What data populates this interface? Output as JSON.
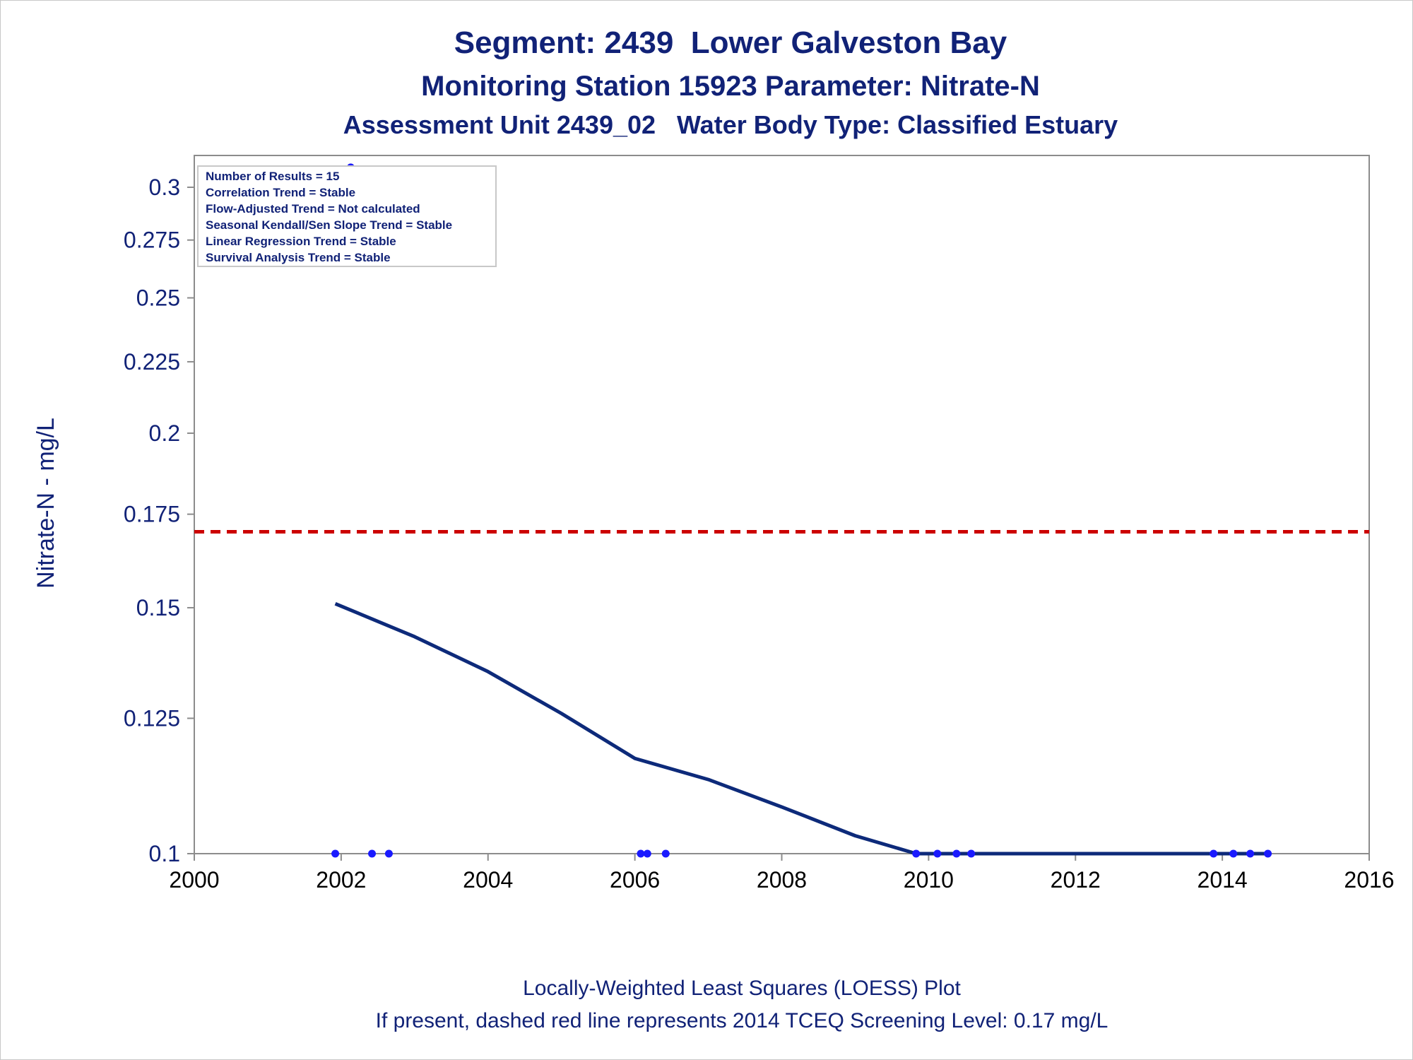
{
  "titles": {
    "line1": "Segment: 2439  Lower Galveston Bay",
    "line2": "Monitoring Station 15923 Parameter: Nitrate-N",
    "line3": "Assessment Unit 2439_02   Water Body Type: Classified Estuary"
  },
  "footnotes": {
    "line1": "Locally-Weighted Least Squares (LOESS) Plot",
    "line2": "If present, dashed red line represents 2014 TCEQ Screening Level: 0.17 mg/L"
  },
  "legend_box": [
    "Number of Results = 15",
    "Correlation Trend = Stable",
    "Flow-Adjusted Trend = Not calculated",
    "Seasonal Kendall/Sen Slope Trend = Stable",
    "Linear Regression Trend = Stable",
    "Survival Analysis Trend = Stable"
  ],
  "colors": {
    "text": "#112277",
    "loess_line": "#0d2a7a",
    "points": "#1a1aff",
    "screening_line": "#cc0000",
    "axis": "#8c8c8c"
  },
  "chart_data": {
    "type": "scatter",
    "xlabel": "",
    "ylabel": "Nitrate-N - mg/L",
    "x_ticks": [
      "2000",
      "2002",
      "2004",
      "2006",
      "2008",
      "2010",
      "2012",
      "2014",
      "2016"
    ],
    "y_ticks": [
      "0.1",
      "0.125",
      "0.15",
      "0.175",
      "0.2",
      "0.225",
      "0.25",
      "0.275",
      "0.3"
    ],
    "xlim": [
      2000,
      2016
    ],
    "ylim": [
      0.1,
      0.3
    ],
    "y_scale": "log",
    "screening_level": 0.17,
    "series": [
      {
        "type": "scatter",
        "points": [
          [
            2001.92,
            0.1
          ],
          [
            2002.42,
            0.1
          ],
          [
            2002.65,
            0.1
          ],
          [
            2006.08,
            0.1
          ],
          [
            2006.17,
            0.1
          ],
          [
            2006.42,
            0.1
          ],
          [
            2009.83,
            0.1
          ],
          [
            2010.12,
            0.1
          ],
          [
            2010.38,
            0.1
          ],
          [
            2010.58,
            0.1
          ],
          [
            2013.88,
            0.1
          ],
          [
            2014.15,
            0.1
          ],
          [
            2014.38,
            0.1
          ],
          [
            2014.62,
            0.1
          ],
          [
            2002.13,
            0.31
          ]
        ]
      },
      {
        "type": "line",
        "points": [
          [
            2001.92,
            0.151
          ],
          [
            2003.0,
            0.143
          ],
          [
            2004.0,
            0.135
          ],
          [
            2005.0,
            0.126
          ],
          [
            2006.0,
            0.117
          ],
          [
            2007.0,
            0.113
          ],
          [
            2008.0,
            0.108
          ],
          [
            2009.0,
            0.103
          ],
          [
            2009.83,
            0.1
          ],
          [
            2014.62,
            0.1
          ]
        ]
      }
    ],
    "legend": "top-left",
    "grid": false
  }
}
